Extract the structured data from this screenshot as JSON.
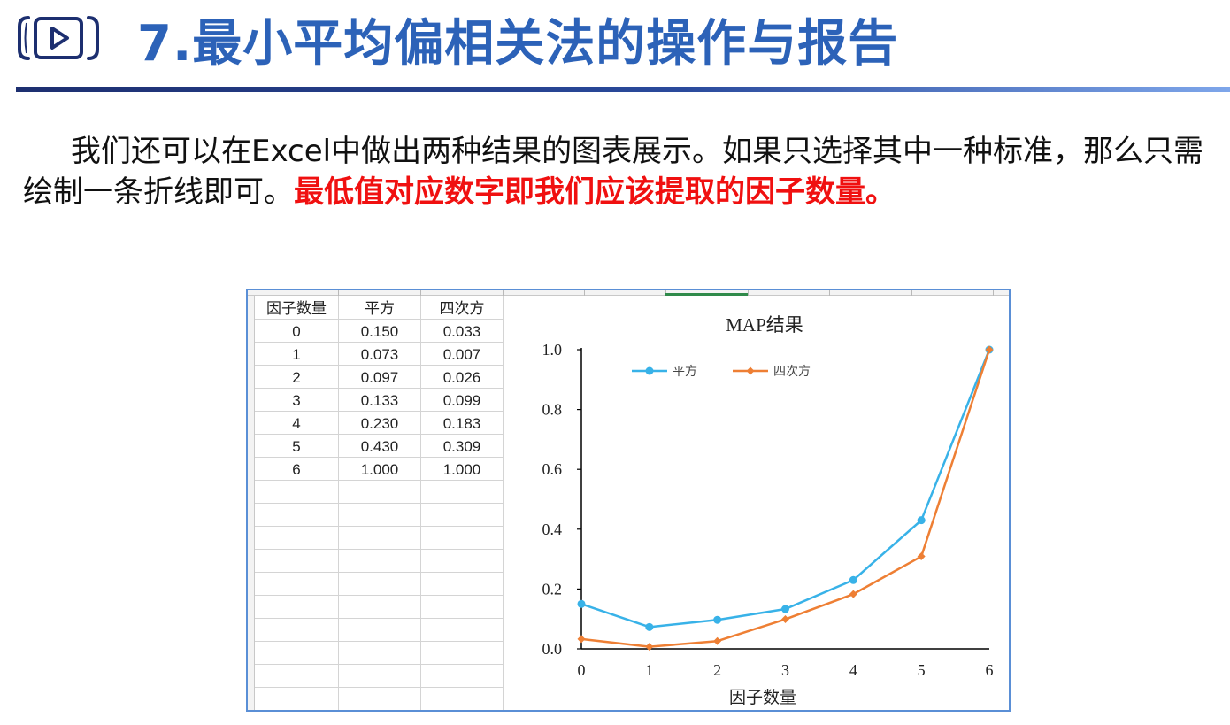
{
  "header": {
    "title": "7.最小平均偏相关法的操作与报告",
    "play_icon": "play-icon",
    "title_color": "#2c62b8"
  },
  "paragraph": {
    "text_normal": "我们还可以在Excel中做出两种结果的图表展示。如果只选择其中一种标准，那么只需绘制一条折线即可。",
    "text_highlight": "最低值对应数字即我们应该提取的因子数量。",
    "highlight_color": "#f01010"
  },
  "table": {
    "headers": [
      "因子数量",
      "平方",
      "四次方"
    ],
    "rows": [
      [
        "0",
        "0.150",
        "0.033"
      ],
      [
        "1",
        "0.073",
        "0.007"
      ],
      [
        "2",
        "0.097",
        "0.026"
      ],
      [
        "3",
        "0.133",
        "0.099"
      ],
      [
        "4",
        "0.230",
        "0.183"
      ],
      [
        "5",
        "0.430",
        "0.309"
      ],
      [
        "6",
        "1.000",
        "1.000"
      ]
    ]
  },
  "chart_data": {
    "type": "line",
    "title": "MAP结果",
    "xlabel": "因子数量",
    "ylabel": "",
    "x": [
      0,
      1,
      2,
      3,
      4,
      5,
      6
    ],
    "xlim": [
      0,
      6
    ],
    "ylim": [
      0,
      1.0
    ],
    "yticks": [
      "0.0",
      "0.2",
      "0.4",
      "0.6",
      "0.8",
      "1.0"
    ],
    "xticks": [
      "0",
      "1",
      "2",
      "3",
      "4",
      "5",
      "6"
    ],
    "grid": false,
    "legend_position": "top-left",
    "series": [
      {
        "name": "平方",
        "values": [
          0.15,
          0.073,
          0.097,
          0.133,
          0.23,
          0.43,
          1.0
        ],
        "color": "#38b2e8"
      },
      {
        "name": "四次方",
        "values": [
          0.033,
          0.007,
          0.026,
          0.099,
          0.183,
          0.309,
          1.0
        ],
        "color": "#ee7f34"
      }
    ]
  }
}
